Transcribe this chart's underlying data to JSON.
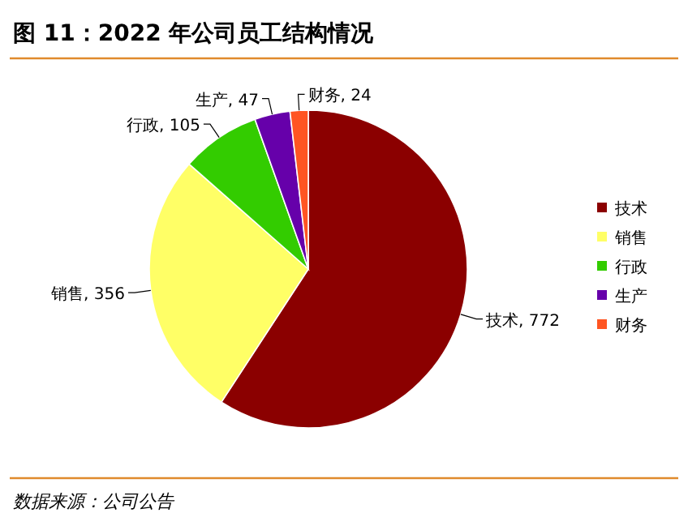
{
  "chart_data": {
    "type": "pie",
    "title": "图 11：2022 年公司员工结构情况",
    "categories": [
      "技术",
      "销售",
      "行政",
      "生产",
      "财务"
    ],
    "values": [
      772,
      356,
      105,
      47,
      24
    ],
    "colors": [
      "#8b0000",
      "#ffff66",
      "#33cc00",
      "#6600aa",
      "#ff5522"
    ],
    "value_labels": [
      "技术, 772",
      "销售, 356",
      "行政, 105",
      "生产, 47",
      "财务, 24"
    ],
    "legend": "right",
    "annotations": [
      "数据来源：公司公告"
    ]
  }
}
